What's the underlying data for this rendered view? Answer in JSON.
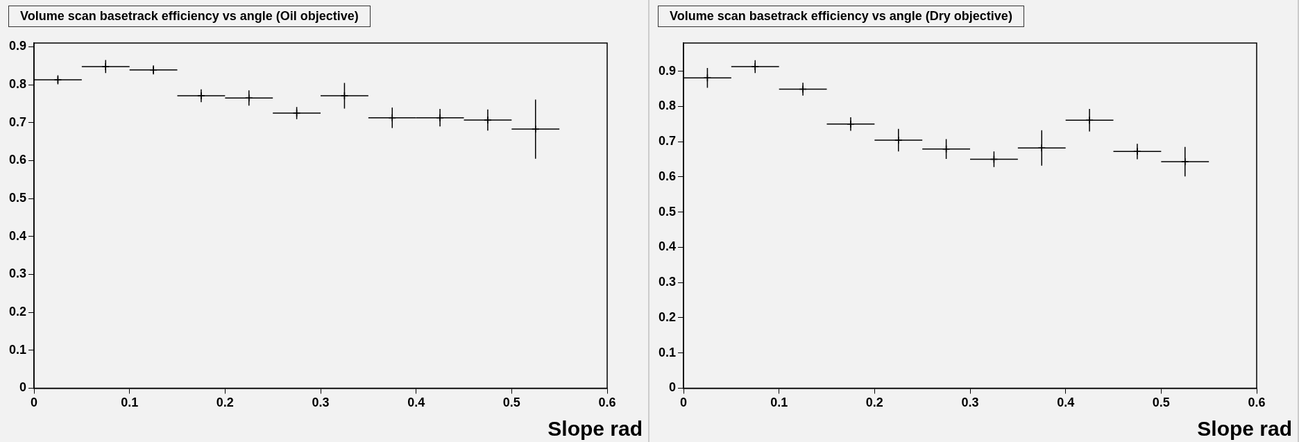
{
  "chart_data": [
    {
      "type": "scatter",
      "title": "Volume scan basetrack efficiency vs angle (Oil objective)",
      "xlabel": "Slope rad",
      "marker": "cross",
      "grid": false,
      "legend": false,
      "x": [
        0.025,
        0.075,
        0.125,
        0.175,
        0.225,
        0.275,
        0.325,
        0.375,
        0.425,
        0.475,
        0.525
      ],
      "values": [
        0.813,
        0.848,
        0.839,
        0.771,
        0.765,
        0.725,
        0.771,
        0.713,
        0.713,
        0.707,
        0.683
      ],
      "errors": [
        0.012,
        0.017,
        0.012,
        0.017,
        0.02,
        0.016,
        0.034,
        0.027,
        0.023,
        0.028,
        0.078
      ],
      "xerrors": [
        0.025,
        0.025,
        0.025,
        0.025,
        0.025,
        0.025,
        0.025,
        0.025,
        0.025,
        0.025,
        0.025
      ],
      "color": "#000000",
      "xlim": [
        0,
        0.6
      ],
      "xticks": [
        0,
        0.1,
        0.2,
        0.3,
        0.4,
        0.5,
        0.6
      ],
      "ylim": [
        0,
        0.91
      ],
      "yticks": [
        0,
        0.1,
        0.2,
        0.3,
        0.4,
        0.5,
        0.6,
        0.7,
        0.8,
        0.9
      ]
    },
    {
      "type": "scatter",
      "title": "Volume scan basetrack efficiency vs angle (Dry objective)",
      "xlabel": "Slope rad",
      "marker": "cross",
      "grid": false,
      "legend": false,
      "x": [
        0.025,
        0.075,
        0.125,
        0.175,
        0.225,
        0.275,
        0.325,
        0.375,
        0.425,
        0.475,
        0.525
      ],
      "values": [
        0.881,
        0.913,
        0.849,
        0.75,
        0.704,
        0.679,
        0.65,
        0.682,
        0.761,
        0.672,
        0.643
      ],
      "errors": [
        0.028,
        0.018,
        0.018,
        0.019,
        0.032,
        0.028,
        0.022,
        0.05,
        0.032,
        0.022,
        0.042
      ],
      "xerrors": [
        0.025,
        0.025,
        0.025,
        0.025,
        0.025,
        0.025,
        0.025,
        0.025,
        0.025,
        0.025,
        0.025
      ],
      "color": "#000000",
      "xlim": [
        0,
        0.6
      ],
      "xticks": [
        0,
        0.1,
        0.2,
        0.3,
        0.4,
        0.5,
        0.6
      ],
      "ylim": [
        0,
        0.98
      ],
      "yticks": [
        0,
        0.1,
        0.2,
        0.3,
        0.4,
        0.5,
        0.6,
        0.7,
        0.8,
        0.9
      ]
    }
  ]
}
